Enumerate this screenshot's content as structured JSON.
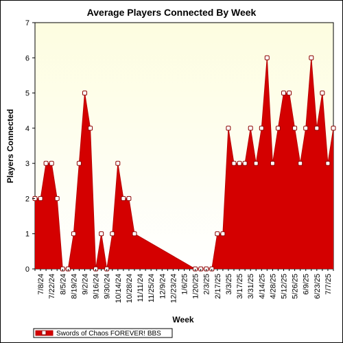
{
  "chart_data": {
    "type": "area",
    "title": "Average Players Connected By Week",
    "xlabel": "Week",
    "ylabel": "Players Connected",
    "ylim": [
      0,
      7
    ],
    "yticks": [
      0,
      1,
      2,
      3,
      4,
      5,
      6,
      7
    ],
    "x_tick_labels": [
      "7/8/24",
      "7/22/24",
      "8/5/24",
      "8/19/24",
      "9/2/24",
      "9/16/24",
      "9/30/24",
      "10/14/24",
      "10/28/24",
      "11/11/24",
      "11/25/24",
      "12/9/24",
      "12/23/24",
      "1/6/25",
      "1/20/25",
      "2/3/25",
      "2/17/25",
      "3/3/25",
      "3/17/25",
      "3/31/25",
      "4/14/25",
      "4/28/25",
      "5/12/25",
      "5/26/25",
      "6/9/25",
      "6/23/25",
      "7/7/25"
    ],
    "grid": false,
    "legend_position": "bottom-left",
    "colors": {
      "fill": "#d40000",
      "line": "#b80000",
      "marker_face": "#ffffff",
      "marker_edge": "#8b0000",
      "plot_bg_top": "#fdfde0",
      "plot_bg_bottom": "#ffffff"
    },
    "series": [
      {
        "name": "Swords of Chaos FOREVER! BBS",
        "points": [
          {
            "x": "7/1/24",
            "y": 2
          },
          {
            "x": "7/8/24",
            "y": 2
          },
          {
            "x": "7/15/24",
            "y": 3
          },
          {
            "x": "7/22/24",
            "y": 3
          },
          {
            "x": "7/29/24",
            "y": 2
          },
          {
            "x": "8/5/24",
            "y": 0
          },
          {
            "x": "8/12/24",
            "y": 0
          },
          {
            "x": "8/19/24",
            "y": 1
          },
          {
            "x": "8/26/24",
            "y": 3
          },
          {
            "x": "9/2/24",
            "y": 5
          },
          {
            "x": "9/9/24",
            "y": 4
          },
          {
            "x": "9/16/24",
            "y": 0
          },
          {
            "x": "9/23/24",
            "y": 1
          },
          {
            "x": "9/30/24",
            "y": 0
          },
          {
            "x": "10/7/24",
            "y": 1
          },
          {
            "x": "10/14/24",
            "y": 3
          },
          {
            "x": "10/21/24",
            "y": 2
          },
          {
            "x": "10/28/24",
            "y": 2
          },
          {
            "x": "11/4/24",
            "y": 1
          },
          {
            "x": "1/20/25",
            "y": 0
          },
          {
            "x": "1/27/25",
            "y": 0
          },
          {
            "x": "2/3/25",
            "y": 0
          },
          {
            "x": "2/10/25",
            "y": 0
          },
          {
            "x": "2/17/25",
            "y": 1
          },
          {
            "x": "2/24/25",
            "y": 1
          },
          {
            "x": "3/3/25",
            "y": 4
          },
          {
            "x": "3/10/25",
            "y": 3
          },
          {
            "x": "3/17/25",
            "y": 3
          },
          {
            "x": "3/24/25",
            "y": 3
          },
          {
            "x": "3/31/25",
            "y": 4
          },
          {
            "x": "4/7/25",
            "y": 3
          },
          {
            "x": "4/14/25",
            "y": 4
          },
          {
            "x": "4/21/25",
            "y": 6
          },
          {
            "x": "4/28/25",
            "y": 3
          },
          {
            "x": "5/5/25",
            "y": 4
          },
          {
            "x": "5/12/25",
            "y": 5
          },
          {
            "x": "5/19/25",
            "y": 5
          },
          {
            "x": "5/26/25",
            "y": 4
          },
          {
            "x": "6/2/25",
            "y": 3
          },
          {
            "x": "6/9/25",
            "y": 4
          },
          {
            "x": "6/16/25",
            "y": 6
          },
          {
            "x": "6/23/25",
            "y": 4
          },
          {
            "x": "6/30/25",
            "y": 5
          },
          {
            "x": "7/7/25",
            "y": 3
          },
          {
            "x": "7/14/25",
            "y": 4
          }
        ]
      }
    ]
  }
}
